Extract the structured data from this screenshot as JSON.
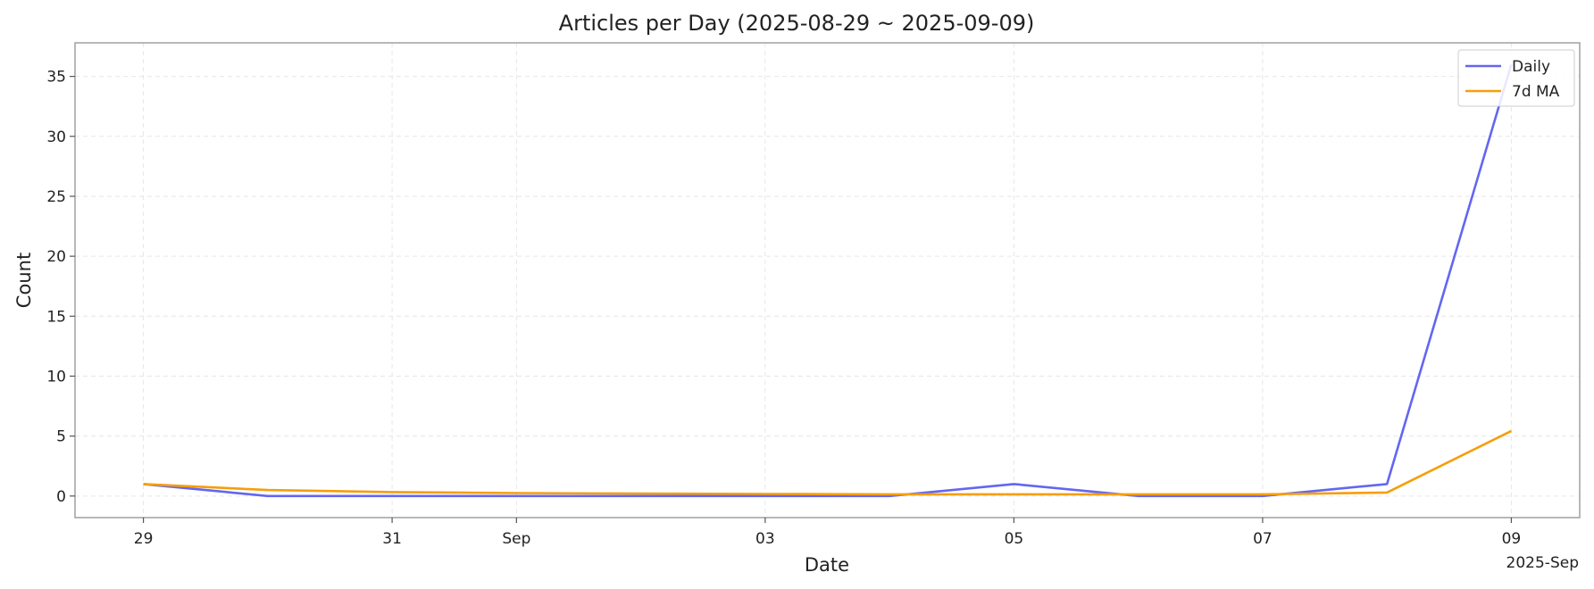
{
  "chart_data": {
    "type": "line",
    "title": "Articles per Day (2025-08-29 ~ 2025-09-09)",
    "xlabel": "Date",
    "ylabel": "Count",
    "x": [
      "2025-08-29",
      "2025-08-30",
      "2025-08-31",
      "2025-09-01",
      "2025-09-02",
      "2025-09-03",
      "2025-09-04",
      "2025-09-05",
      "2025-09-06",
      "2025-09-07",
      "2025-09-08",
      "2025-09-09"
    ],
    "x_ticks": [
      "2025-08-29",
      "2025-08-31",
      "2025-09-01",
      "2025-09-03",
      "2025-09-05",
      "2025-09-07",
      "2025-09-09"
    ],
    "x_tick_labels": [
      "29",
      "31",
      "Sep",
      "03",
      "05",
      "07",
      "09"
    ],
    "x_offset_label": "2025-Sep",
    "xlim": [
      "2025-08-28",
      "2025-09-09"
    ],
    "ylim": [
      -1.8,
      37.8
    ],
    "y_ticks": [
      0,
      5,
      10,
      15,
      20,
      25,
      30,
      35
    ],
    "grid": true,
    "legend_position": "top-right",
    "series": [
      {
        "name": "Daily",
        "color": "#6366f1",
        "values": [
          1,
          0,
          0,
          0,
          0,
          0,
          0,
          1,
          0,
          0,
          1,
          36
        ]
      },
      {
        "name": "7d MA",
        "color": "#f59e0b",
        "values": [
          1.0,
          0.5,
          0.33,
          0.25,
          0.2,
          0.17,
          0.14,
          0.14,
          0.14,
          0.14,
          0.29,
          5.43
        ]
      }
    ]
  }
}
